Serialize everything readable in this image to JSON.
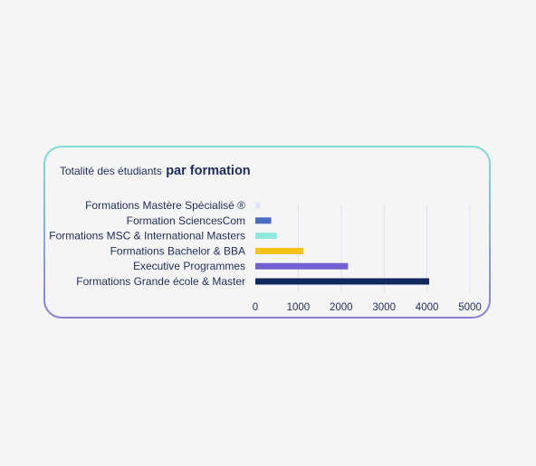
{
  "header": {
    "title_light": "Totalité des étudiants",
    "title_bold": "par formation"
  },
  "chart_data": {
    "type": "bar",
    "orientation": "horizontal",
    "title": "Totalité des étudiants par formation",
    "categories": [
      "Formations Mastère Spécialisé ®",
      "Formation SciencesCom",
      "Formations MSC & International Masters",
      "Formations Bachelor & BBA",
      "Executive Programmes",
      "Formations Grande école & Master"
    ],
    "values": [
      120,
      370,
      500,
      1120,
      2160,
      4050
    ],
    "colors": [
      "#e4e6f5",
      "#4a6cc0",
      "#8ee8de",
      "#f3c316",
      "#7560d3",
      "#13285e"
    ],
    "xlim": [
      0,
      5000
    ],
    "xticks": [
      "0",
      "1000",
      "2000",
      "3000",
      "4000",
      "5000"
    ],
    "grid": true,
    "xlabel": "",
    "ylabel": ""
  }
}
